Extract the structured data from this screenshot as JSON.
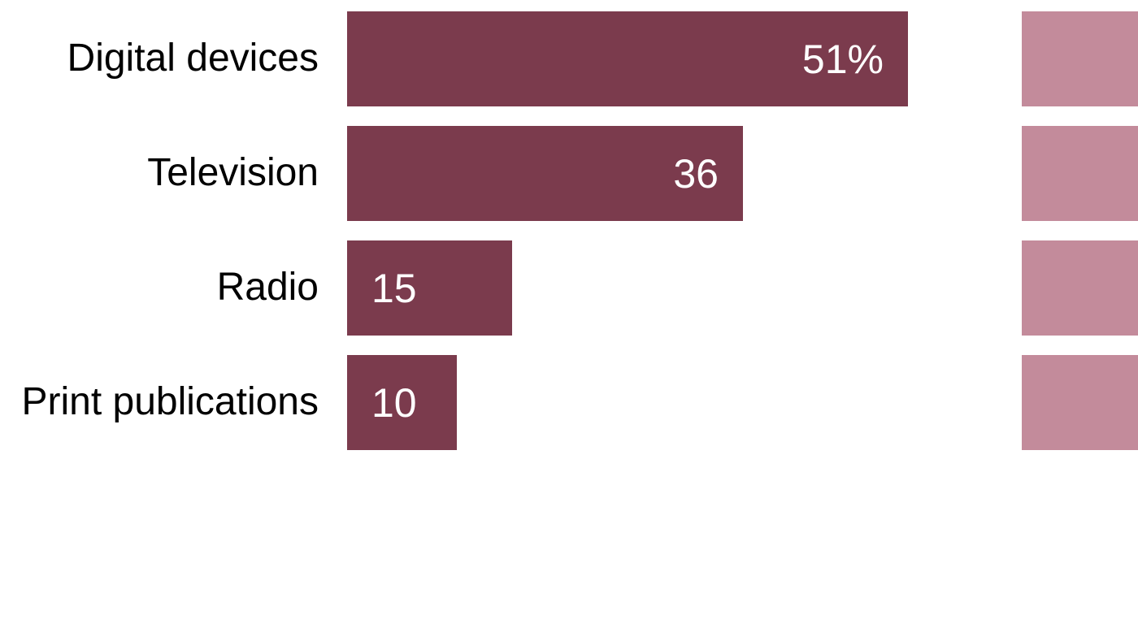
{
  "chart_data": {
    "type": "bar",
    "orientation": "horizontal",
    "title": "",
    "xlabel": "",
    "ylabel": "",
    "categories": [
      "Digital devices",
      "Television",
      "Radio",
      "Print publications"
    ],
    "values": [
      51,
      36,
      15,
      10
    ],
    "value_labels": [
      "51%",
      "36",
      "15",
      "10"
    ],
    "value_labels_position": "inside",
    "xlim": [
      0,
      51
    ],
    "grid": false,
    "legend": false,
    "bar_color": "#7B3B4D",
    "right_partial_series_color": "#C38B9B",
    "label_color": "#000000",
    "value_label_color": "#ffffff"
  }
}
